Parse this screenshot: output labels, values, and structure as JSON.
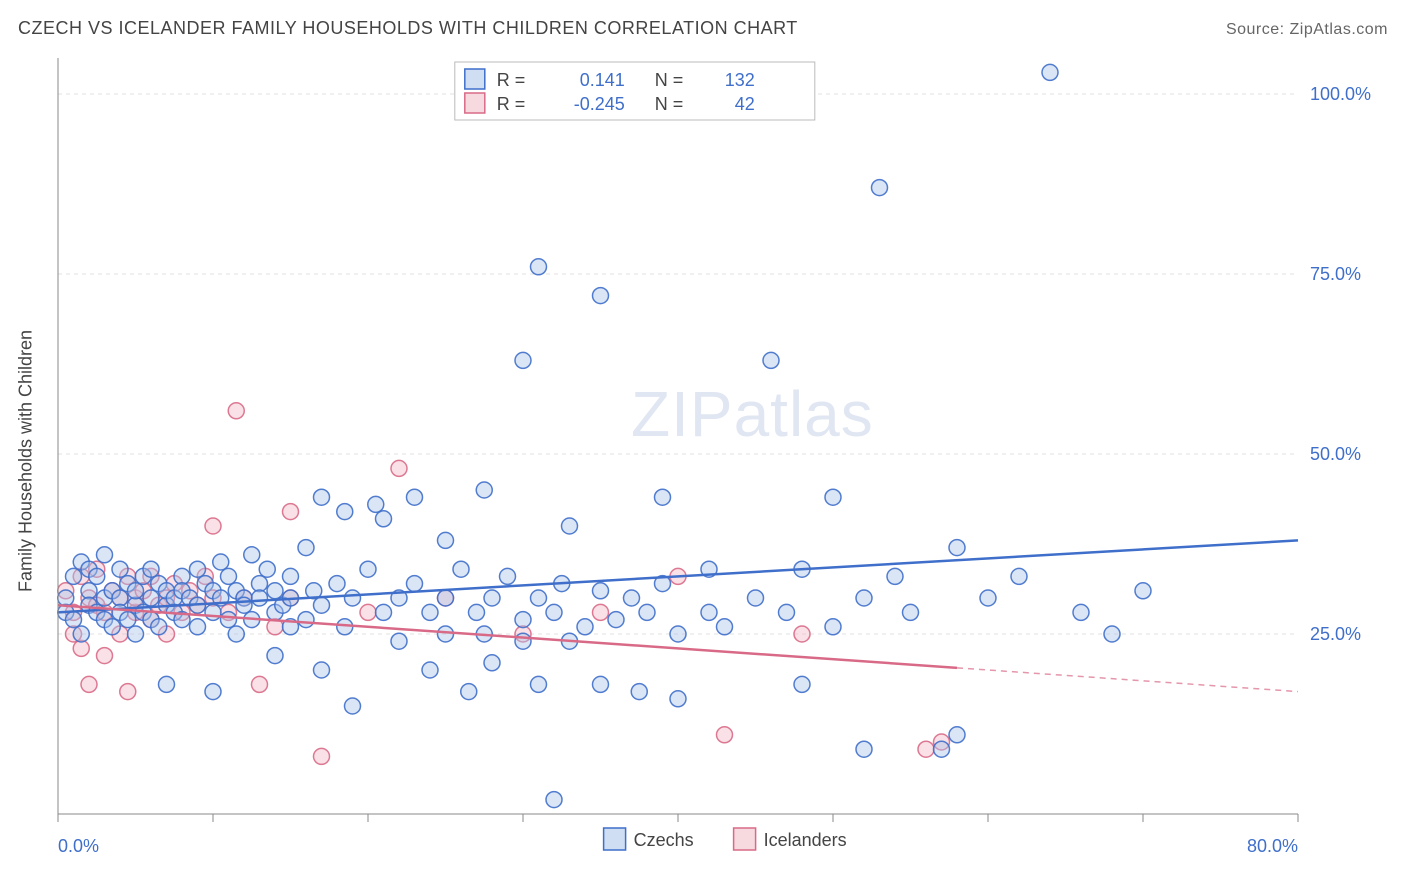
{
  "title": "CZECH VS ICELANDER FAMILY HOUSEHOLDS WITH CHILDREN CORRELATION CHART",
  "source": "Source: ZipAtlas.com",
  "watermark": "ZIPatlas",
  "ylabel": "Family Households with Children",
  "chart": {
    "type": "scatter",
    "background_color": "#ffffff",
    "grid_color": "#e2e2e2",
    "axis_color": "#888888",
    "xlim": [
      0,
      80
    ],
    "ylim": [
      0,
      105
    ],
    "xticks_positions": [
      0,
      10,
      20,
      30,
      40,
      50,
      60,
      70,
      80
    ],
    "xticks_labels": [
      "0.0%",
      "",
      "",
      "",
      "",
      "",
      "",
      "",
      "80.0%"
    ],
    "yticks": [
      {
        "v": 25,
        "label": "25.0%"
      },
      {
        "v": 50,
        "label": "50.0%"
      },
      {
        "v": 75,
        "label": "75.0%"
      },
      {
        "v": 100,
        "label": "100.0%"
      }
    ],
    "marker_radius": 8,
    "marker_stroke_width": 1.5,
    "marker_fill_opacity": 0.18,
    "trend_line_width": 2.5,
    "tick_label_color": "#3f6fca",
    "tick_label_fontsize": 18
  },
  "series": {
    "czechs": {
      "label": "Czechs",
      "color": "#3f6fca",
      "fill": "#a9c3ea",
      "R": "0.141",
      "N": "132",
      "trend": {
        "x0": 0,
        "y0": 28,
        "x1": 80,
        "y1": 38,
        "dashed_from": null
      },
      "points": [
        [
          0.5,
          30
        ],
        [
          0.5,
          28
        ],
        [
          1,
          33
        ],
        [
          1,
          27
        ],
        [
          1.5,
          35
        ],
        [
          1.5,
          25
        ],
        [
          2,
          31
        ],
        [
          2,
          29
        ],
        [
          2,
          34
        ],
        [
          2.5,
          28
        ],
        [
          2.5,
          33
        ],
        [
          3,
          30
        ],
        [
          3,
          27
        ],
        [
          3,
          36
        ],
        [
          3.5,
          26
        ],
        [
          3.5,
          31
        ],
        [
          4,
          30
        ],
        [
          4,
          28
        ],
        [
          4,
          34
        ],
        [
          4.5,
          32
        ],
        [
          4.5,
          27
        ],
        [
          5,
          29
        ],
        [
          5,
          25
        ],
        [
          5,
          31
        ],
        [
          5.5,
          33
        ],
        [
          5.5,
          28
        ],
        [
          6,
          30
        ],
        [
          6,
          34
        ],
        [
          6,
          27
        ],
        [
          6.5,
          26
        ],
        [
          6.5,
          32
        ],
        [
          7,
          29
        ],
        [
          7,
          31
        ],
        [
          7,
          18
        ],
        [
          7.5,
          30
        ],
        [
          7.5,
          28
        ],
        [
          8,
          33
        ],
        [
          8,
          27
        ],
        [
          8,
          31
        ],
        [
          8.5,
          30
        ],
        [
          9,
          34
        ],
        [
          9,
          26
        ],
        [
          9,
          29
        ],
        [
          9.5,
          32
        ],
        [
          10,
          31
        ],
        [
          10,
          28
        ],
        [
          10,
          17
        ],
        [
          10.5,
          30
        ],
        [
          10.5,
          35
        ],
        [
          11,
          27
        ],
        [
          11,
          33
        ],
        [
          11.5,
          31
        ],
        [
          11.5,
          25
        ],
        [
          12,
          30
        ],
        [
          12,
          29
        ],
        [
          12.5,
          36
        ],
        [
          12.5,
          27
        ],
        [
          13,
          32
        ],
        [
          13,
          30
        ],
        [
          13.5,
          34
        ],
        [
          14,
          28
        ],
        [
          14,
          31
        ],
        [
          14,
          22
        ],
        [
          14.5,
          29
        ],
        [
          15,
          33
        ],
        [
          15,
          26
        ],
        [
          15,
          30
        ],
        [
          16,
          37
        ],
        [
          16,
          27
        ],
        [
          16.5,
          31
        ],
        [
          17,
          29
        ],
        [
          17,
          44
        ],
        [
          17,
          20
        ],
        [
          18,
          32
        ],
        [
          18.5,
          42
        ],
        [
          18.5,
          26
        ],
        [
          19,
          30
        ],
        [
          19,
          15
        ],
        [
          20,
          34
        ],
        [
          20.5,
          43
        ],
        [
          21,
          28
        ],
        [
          21,
          41
        ],
        [
          22,
          30
        ],
        [
          22,
          24
        ],
        [
          23,
          32
        ],
        [
          23,
          44
        ],
        [
          24,
          28
        ],
        [
          24,
          20
        ],
        [
          25,
          30
        ],
        [
          25,
          25
        ],
        [
          25,
          38
        ],
        [
          26,
          34
        ],
        [
          26.5,
          17
        ],
        [
          27,
          28
        ],
        [
          27.5,
          45
        ],
        [
          27.5,
          25
        ],
        [
          28,
          30
        ],
        [
          28,
          21
        ],
        [
          29,
          33
        ],
        [
          30,
          27
        ],
        [
          30,
          24
        ],
        [
          30,
          63
        ],
        [
          31,
          30
        ],
        [
          31,
          18
        ],
        [
          31,
          76
        ],
        [
          32,
          28
        ],
        [
          32.5,
          32
        ],
        [
          33,
          24
        ],
        [
          33,
          40
        ],
        [
          34,
          26
        ],
        [
          35,
          31
        ],
        [
          35,
          18
        ],
        [
          35,
          72
        ],
        [
          36,
          27
        ],
        [
          37,
          30
        ],
        [
          37.5,
          17
        ],
        [
          38,
          28
        ],
        [
          39,
          32
        ],
        [
          39,
          44
        ],
        [
          40,
          25
        ],
        [
          40,
          16
        ],
        [
          42,
          28
        ],
        [
          42,
          34
        ],
        [
          43,
          26
        ],
        [
          45,
          30
        ],
        [
          46,
          63
        ],
        [
          47,
          28
        ],
        [
          48,
          18
        ],
        [
          48,
          34
        ],
        [
          50,
          26
        ],
        [
          50,
          44
        ],
        [
          52,
          30
        ],
        [
          52,
          9
        ],
        [
          53,
          87
        ],
        [
          54,
          33
        ],
        [
          55,
          28
        ],
        [
          57,
          9
        ],
        [
          58,
          37
        ],
        [
          58,
          11
        ],
        [
          60,
          30
        ],
        [
          62,
          33
        ],
        [
          64,
          103
        ],
        [
          66,
          28
        ],
        [
          68,
          25
        ],
        [
          70,
          31
        ],
        [
          32,
          2
        ]
      ]
    },
    "icelanders": {
      "label": "Icelanders",
      "color": "#d96a87",
      "fill": "#f1b9c7",
      "R": "-0.245",
      "N": "42",
      "trend": {
        "x0": 0,
        "y0": 29,
        "x1": 80,
        "y1": 17,
        "dashed_from": 58
      },
      "points": [
        [
          0.5,
          31
        ],
        [
          1,
          28
        ],
        [
          1,
          25
        ],
        [
          1.5,
          33
        ],
        [
          1.5,
          23
        ],
        [
          2,
          30
        ],
        [
          2,
          18
        ],
        [
          2.5,
          29
        ],
        [
          2.5,
          34
        ],
        [
          3,
          28
        ],
        [
          3,
          22
        ],
        [
          3.5,
          31
        ],
        [
          4,
          30
        ],
        [
          4,
          25
        ],
        [
          4.5,
          33
        ],
        [
          4.5,
          17
        ],
        [
          5,
          28
        ],
        [
          5,
          30
        ],
        [
          5.5,
          31
        ],
        [
          6,
          27
        ],
        [
          6,
          33
        ],
        [
          6.5,
          29
        ],
        [
          7,
          30
        ],
        [
          7,
          25
        ],
        [
          7.5,
          32
        ],
        [
          8,
          28
        ],
        [
          8.5,
          31
        ],
        [
          9,
          29
        ],
        [
          9.5,
          33
        ],
        [
          10,
          30
        ],
        [
          10,
          40
        ],
        [
          11,
          28
        ],
        [
          11.5,
          56
        ],
        [
          12,
          30
        ],
        [
          13,
          18
        ],
        [
          14,
          26
        ],
        [
          15,
          30
        ],
        [
          15,
          42
        ],
        [
          17,
          8
        ],
        [
          20,
          28
        ],
        [
          22,
          48
        ],
        [
          25,
          30
        ],
        [
          30,
          25
        ],
        [
          35,
          28
        ],
        [
          40,
          33
        ],
        [
          43,
          11
        ],
        [
          48,
          25
        ],
        [
          57,
          10
        ],
        [
          56,
          9
        ]
      ]
    }
  },
  "stats_legend": {
    "border_color": "#bbbbbb",
    "label_color": "#444444",
    "value_label_text": [
      "R =",
      "N ="
    ],
    "fontsize": 18
  },
  "bottom_legend": {
    "items": [
      "Czechs",
      "Icelanders"
    ]
  }
}
